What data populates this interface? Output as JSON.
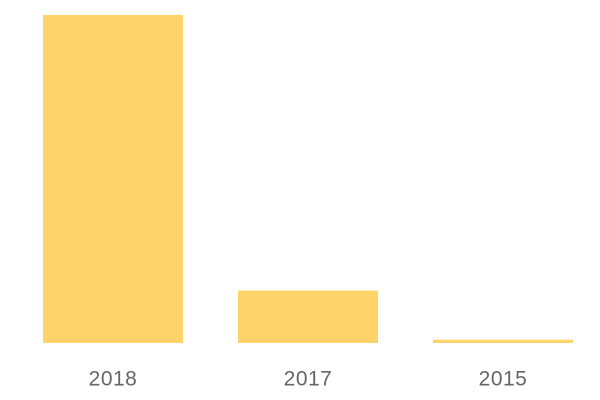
{
  "chart_data": {
    "type": "bar",
    "categories": [
      "2018",
      "2017",
      "2015"
    ],
    "values": [
      100,
      16,
      1
    ],
    "color": "#fdd36a",
    "ylim": [
      0,
      100
    ]
  }
}
